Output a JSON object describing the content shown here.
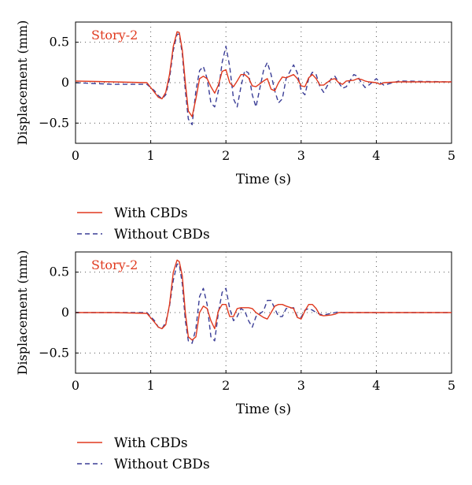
{
  "colors": {
    "with": "#e0391e",
    "without": "#3a3d96",
    "axis": "#000000",
    "grid": "#555555"
  },
  "chart_data": [
    {
      "type": "line",
      "annotation": "Story-2",
      "xlabel": "Time (s)",
      "ylabel": "Displacement (mm)",
      "xlim": [
        0,
        5
      ],
      "ylim": [
        -0.75,
        0.75
      ],
      "xticks": [
        0,
        1,
        2,
        3,
        4,
        5
      ],
      "yticks": [
        -0.5,
        0,
        0.5
      ],
      "xtick_labels": [
        "0",
        "1",
        "2",
        "3",
        "4",
        "5"
      ],
      "ytick_labels": [
        "−0.5",
        "0",
        "0.5"
      ],
      "grid": true,
      "legend_position": "below",
      "series": [
        {
          "name": "With CBDs",
          "style": "solid",
          "x": [
            0,
            0.5,
            0.95,
            1.05,
            1.1,
            1.15,
            1.2,
            1.25,
            1.3,
            1.35,
            1.38,
            1.42,
            1.46,
            1.5,
            1.55,
            1.6,
            1.65,
            1.7,
            1.75,
            1.8,
            1.85,
            1.9,
            1.95,
            2.0,
            2.05,
            2.1,
            2.15,
            2.2,
            2.25,
            2.3,
            2.35,
            2.4,
            2.5,
            2.55,
            2.6,
            2.65,
            2.7,
            2.75,
            2.8,
            2.9,
            2.95,
            3.0,
            3.05,
            3.1,
            3.15,
            3.2,
            3.25,
            3.3,
            3.4,
            3.45,
            3.5,
            3.55,
            3.6,
            3.7,
            3.75,
            3.8,
            3.85,
            3.9,
            4.0,
            4.05,
            4.1,
            4.3,
            5.0
          ],
          "y": [
            0.02,
            0.01,
            0.0,
            -0.12,
            -0.18,
            -0.2,
            -0.12,
            0.1,
            0.45,
            0.63,
            0.62,
            0.4,
            0.0,
            -0.35,
            -0.42,
            -0.2,
            0.05,
            0.08,
            0.05,
            -0.05,
            -0.13,
            -0.03,
            0.14,
            0.16,
            0.0,
            -0.05,
            0.02,
            0.1,
            0.1,
            0.06,
            -0.04,
            -0.05,
            0.02,
            0.05,
            -0.08,
            -0.1,
            0.0,
            0.07,
            0.06,
            0.1,
            0.05,
            -0.04,
            -0.05,
            0.06,
            0.1,
            0.05,
            -0.03,
            -0.03,
            0.04,
            0.05,
            0.0,
            -0.02,
            0.02,
            0.03,
            0.05,
            0.04,
            0.02,
            0.01,
            0.0,
            -0.02,
            0.0,
            0.01,
            0.01
          ]
        },
        {
          "name": "Without CBDs",
          "style": "dashed",
          "x": [
            0,
            0.5,
            0.95,
            1.05,
            1.1,
            1.15,
            1.2,
            1.25,
            1.3,
            1.35,
            1.38,
            1.42,
            1.46,
            1.5,
            1.55,
            1.6,
            1.65,
            1.7,
            1.75,
            1.8,
            1.85,
            1.9,
            1.95,
            2.0,
            2.05,
            2.1,
            2.15,
            2.2,
            2.25,
            2.3,
            2.35,
            2.4,
            2.5,
            2.55,
            2.6,
            2.65,
            2.7,
            2.75,
            2.8,
            2.9,
            2.95,
            3.0,
            3.05,
            3.1,
            3.15,
            3.2,
            3.25,
            3.3,
            3.4,
            3.45,
            3.5,
            3.55,
            3.6,
            3.7,
            3.75,
            3.8,
            3.85,
            3.9,
            4.0,
            4.05,
            4.1,
            4.3,
            5.0
          ],
          "y": [
            0.0,
            -0.02,
            -0.02,
            -0.1,
            -0.16,
            -0.2,
            -0.15,
            0.05,
            0.4,
            0.6,
            0.6,
            0.35,
            -0.1,
            -0.45,
            -0.52,
            -0.1,
            0.15,
            0.2,
            0.05,
            -0.25,
            -0.3,
            -0.1,
            0.25,
            0.45,
            0.2,
            -0.2,
            -0.3,
            -0.05,
            0.15,
            0.12,
            -0.15,
            -0.3,
            0.15,
            0.25,
            0.1,
            -0.1,
            -0.25,
            -0.2,
            0.05,
            0.22,
            0.12,
            -0.1,
            -0.15,
            0.05,
            0.13,
            0.1,
            -0.05,
            -0.12,
            0.05,
            0.08,
            0.0,
            -0.07,
            -0.05,
            0.1,
            0.08,
            0.0,
            -0.06,
            -0.03,
            0.05,
            0.0,
            -0.03,
            0.02,
            0.01
          ]
        }
      ]
    },
    {
      "type": "line",
      "annotation": "Story-2",
      "xlabel": "Time (s)",
      "ylabel": "Displacement (mm)",
      "xlim": [
        0,
        5
      ],
      "ylim": [
        -0.75,
        0.75
      ],
      "xticks": [
        0,
        1,
        2,
        3,
        4,
        5
      ],
      "yticks": [
        -0.5,
        0,
        0.5
      ],
      "xtick_labels": [
        "0",
        "1",
        "2",
        "3",
        "4",
        "5"
      ],
      "ytick_labels": [
        "−0.5",
        "0",
        "0.5"
      ],
      "grid": true,
      "legend_position": "below",
      "series": [
        {
          "name": "With CBDs",
          "style": "solid",
          "x": [
            0,
            0.5,
            0.95,
            1.05,
            1.1,
            1.15,
            1.2,
            1.25,
            1.3,
            1.35,
            1.38,
            1.42,
            1.46,
            1.5,
            1.55,
            1.6,
            1.65,
            1.7,
            1.75,
            1.8,
            1.85,
            1.9,
            1.95,
            2.0,
            2.05,
            2.1,
            2.15,
            2.2,
            2.25,
            2.3,
            2.35,
            2.4,
            2.5,
            2.55,
            2.6,
            2.65,
            2.7,
            2.75,
            2.8,
            2.9,
            2.95,
            3.0,
            3.05,
            3.1,
            3.15,
            3.2,
            3.25,
            3.3,
            3.4,
            3.45,
            3.5,
            3.55,
            3.6,
            3.7,
            3.75,
            3.8,
            3.85,
            3.9,
            4.0,
            4.05,
            4.1,
            4.3,
            5.0
          ],
          "y": [
            0.0,
            0.0,
            -0.01,
            -0.12,
            -0.18,
            -0.2,
            -0.15,
            0.1,
            0.5,
            0.65,
            0.63,
            0.45,
            0.0,
            -0.3,
            -0.34,
            -0.3,
            0.0,
            0.08,
            0.05,
            -0.1,
            -0.2,
            0.02,
            0.1,
            0.1,
            -0.05,
            -0.05,
            0.05,
            0.06,
            0.06,
            0.06,
            0.05,
            0.0,
            -0.06,
            -0.08,
            0.0,
            0.08,
            0.1,
            0.1,
            0.08,
            0.05,
            -0.06,
            -0.08,
            0.02,
            0.1,
            0.1,
            0.05,
            -0.03,
            -0.04,
            -0.03,
            -0.02,
            0.0,
            0.0,
            0.0,
            0.0,
            0.0,
            0.0,
            0.0,
            0.0,
            0.0,
            0.0,
            0.0,
            0.0,
            0.0
          ]
        },
        {
          "name": "Without CBDs",
          "style": "dashed",
          "x": [
            0,
            0.5,
            0.95,
            1.05,
            1.1,
            1.15,
            1.2,
            1.25,
            1.3,
            1.35,
            1.38,
            1.42,
            1.46,
            1.5,
            1.55,
            1.6,
            1.65,
            1.7,
            1.75,
            1.8,
            1.85,
            1.9,
            1.95,
            2.0,
            2.05,
            2.1,
            2.15,
            2.2,
            2.25,
            2.3,
            2.35,
            2.4,
            2.5,
            2.55,
            2.6,
            2.65,
            2.7,
            2.75,
            2.8,
            2.9,
            2.95,
            3.0,
            3.05,
            3.1,
            3.15,
            3.2,
            3.25,
            3.3,
            3.4,
            3.45,
            3.5,
            3.55,
            3.6,
            3.7,
            3.75,
            3.8,
            3.85,
            3.9,
            4.0,
            4.05,
            4.1,
            4.3,
            5.0
          ],
          "y": [
            0.0,
            0.0,
            0.0,
            -0.1,
            -0.18,
            -0.2,
            -0.12,
            0.08,
            0.4,
            0.6,
            0.6,
            0.35,
            -0.1,
            -0.35,
            -0.38,
            -0.2,
            0.2,
            0.3,
            0.1,
            -0.3,
            -0.35,
            0.0,
            0.25,
            0.3,
            0.05,
            -0.1,
            -0.05,
            0.05,
            0.02,
            -0.1,
            -0.18,
            -0.05,
            0.02,
            0.15,
            0.15,
            0.05,
            -0.05,
            -0.05,
            0.05,
            0.06,
            -0.05,
            -0.06,
            0.03,
            0.05,
            0.03,
            0.0,
            -0.02,
            -0.03,
            -0.01,
            0.0,
            0.01,
            0.0,
            0.0,
            0.0,
            0.0,
            0.0,
            0.0,
            0.0,
            0.0,
            0.0,
            0.0,
            0.0,
            0.0
          ]
        }
      ]
    }
  ]
}
